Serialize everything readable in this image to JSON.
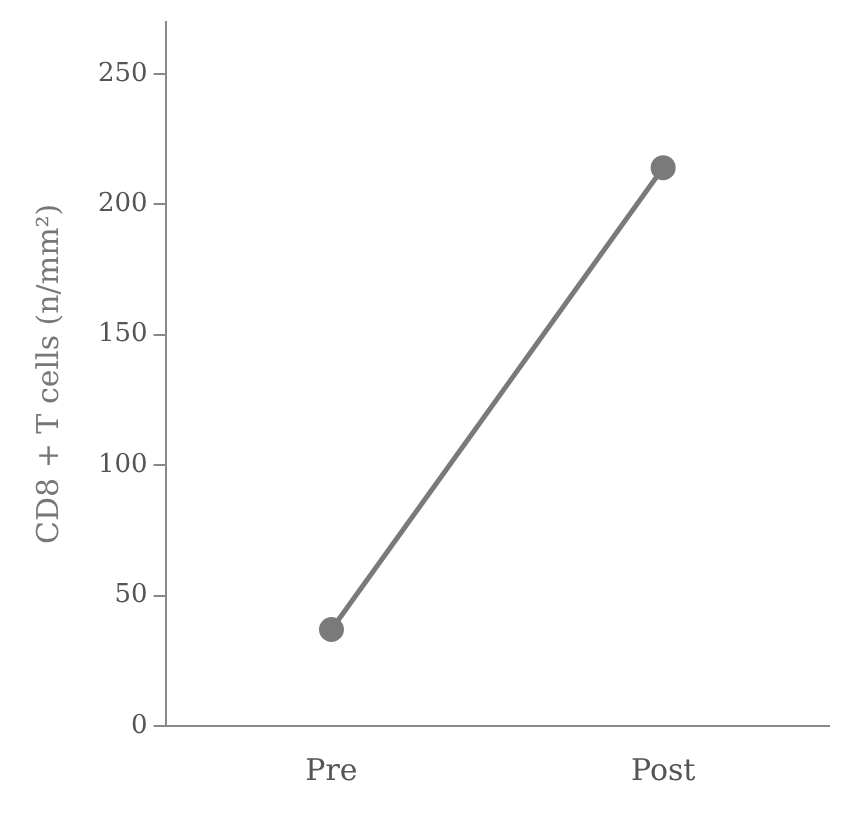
{
  "chart_data": {
    "type": "line",
    "ylabel": "CD8 + T cells (n/mm²)",
    "categories": [
      "Pre",
      "Post"
    ],
    "series": [
      {
        "color": "#7a7a7a",
        "values": [
          37,
          214
        ]
      }
    ],
    "ylim": [
      0,
      270
    ],
    "yticks": [
      0,
      50,
      100,
      150,
      200,
      250
    ],
    "grid": false,
    "legend": false,
    "marker": "circle",
    "line_style": "solid"
  }
}
